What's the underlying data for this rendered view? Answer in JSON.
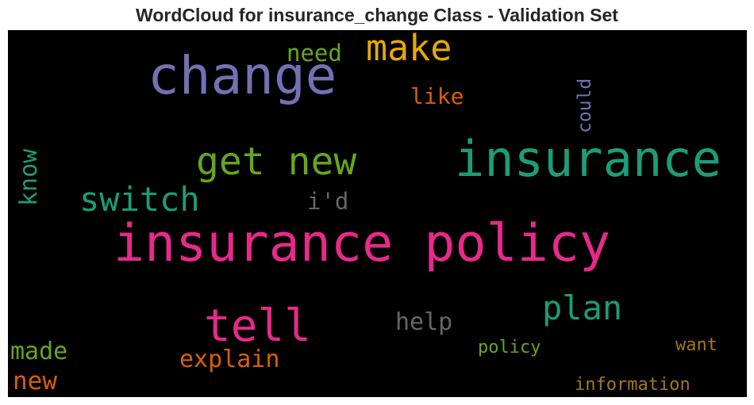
{
  "title": "WordCloud for insurance_change Class - Validation Set",
  "colors": {
    "background": "#000000",
    "pink": "#e7298a",
    "teal": "#1b9e77",
    "purple": "#7570b3",
    "olive_green": "#66a61e",
    "gold": "#e6ab02",
    "orange": "#d95f02",
    "gray": "#666666",
    "brown": "#a6761d"
  },
  "words": {
    "insurance_policy": "insurance policy",
    "insurance": "insurance",
    "change": "change",
    "tell": "tell",
    "make": "make",
    "get_new": "get new",
    "switch": "switch",
    "plan": "plan",
    "need": "need",
    "like": "like",
    "could": "could",
    "know": "know",
    "id": "i'd",
    "help": "help",
    "made": "made",
    "explain": "explain",
    "new": "new",
    "policy": "policy",
    "want": "want",
    "information": "information"
  }
}
